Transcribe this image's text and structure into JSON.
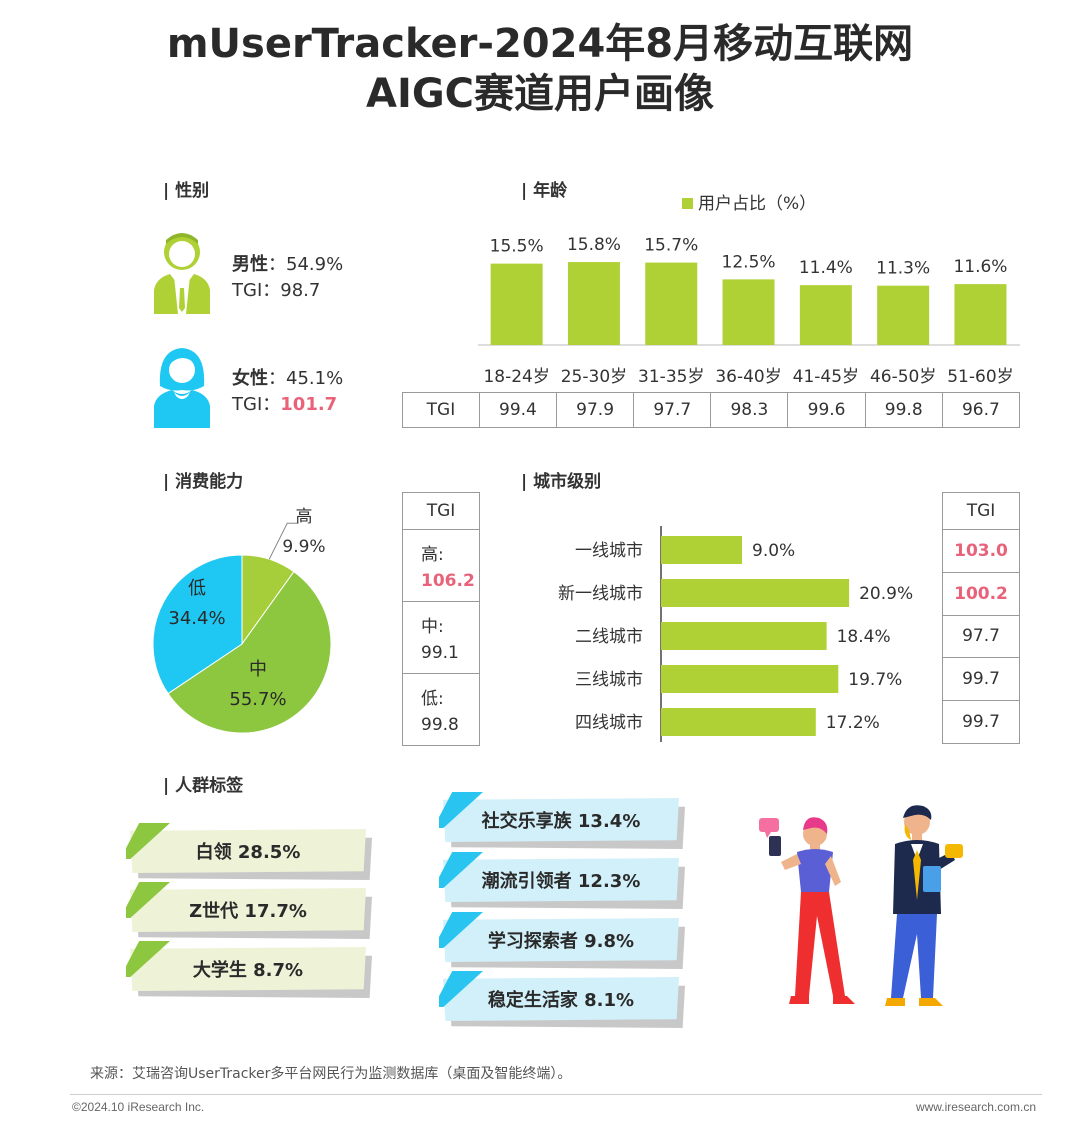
{
  "title": {
    "line1": "mUserTracker-2024年8月移动互联网",
    "line2": "AIGC赛道用户画像"
  },
  "colors": {
    "green": "#afd135",
    "pie_high": "#a6cd3a",
    "pie_mid": "#8dc63f",
    "pie_low": "#1ec8f2",
    "tgi_red": "#e8637a"
  },
  "sections": {
    "gender": "| 性别",
    "age": "| 年龄",
    "consumption": "| 消费能力",
    "city": "| 城市级别",
    "tags": "| 人群标签"
  },
  "gender": {
    "male": {
      "label": "男性",
      "value": "54.9%",
      "tgi_label": "TGI",
      "tgi": "98.7",
      "icon": "male-user-icon"
    },
    "female": {
      "label": "女性",
      "value": "45.1%",
      "tgi_label": "TGI",
      "tgi": "101.7",
      "icon": "female-user-icon"
    },
    "separator": "："
  },
  "consumption_table": {
    "header": "TGI",
    "rows": [
      {
        "label": "高:",
        "tgi": "106.2",
        "highlight": true
      },
      {
        "label": "中:",
        "tgi": "99.1",
        "highlight": false
      },
      {
        "label": "低:",
        "tgi": "99.8",
        "highlight": false
      }
    ]
  },
  "city_table": {
    "header": "TGI",
    "rows": [
      {
        "tgi": "103.0",
        "highlight": true
      },
      {
        "tgi": "100.2",
        "highlight": true
      },
      {
        "tgi": "97.7",
        "highlight": false
      },
      {
        "tgi": "99.7",
        "highlight": false
      },
      {
        "tgi": "99.7",
        "highlight": false
      }
    ]
  },
  "chart_data": [
    {
      "type": "bar",
      "legend": "用户占比（%）",
      "legend_position": "top-right",
      "categories": [
        "18-24岁",
        "25-30岁",
        "31-35岁",
        "36-40岁",
        "41-45岁",
        "46-50岁",
        "51-60岁"
      ],
      "series": [
        {
          "name": "用户占比（%）",
          "values": [
            15.5,
            15.8,
            15.7,
            12.5,
            11.4,
            11.3,
            11.6
          ]
        }
      ],
      "value_labels": [
        "15.5%",
        "15.8%",
        "15.7%",
        "12.5%",
        "11.4%",
        "11.3%",
        "11.6%"
      ],
      "tgi_label": "TGI",
      "tgi": [
        "99.4",
        "97.9",
        "97.7",
        "98.3",
        "99.6",
        "99.8",
        "96.7"
      ],
      "grid": false
    },
    {
      "type": "pie",
      "slices": [
        {
          "label": "高",
          "value": 9.9,
          "text": "9.9%"
        },
        {
          "label": "中",
          "value": 55.7,
          "text": "55.7%"
        },
        {
          "label": "低",
          "value": 34.4,
          "text": "34.4%"
        }
      ]
    },
    {
      "type": "bar",
      "orientation": "horizontal",
      "categories": [
        "一线城市",
        "新一线城市",
        "二线城市",
        "三线城市",
        "四线城市"
      ],
      "values": [
        9.0,
        20.9,
        18.4,
        19.7,
        17.2
      ],
      "value_labels": [
        "9.0%",
        "20.9%",
        "18.4%",
        "19.7%",
        "17.2%"
      ],
      "grid": false
    }
  ],
  "tags": {
    "green": [
      {
        "text": "白领  28.5%"
      },
      {
        "text": "Z世代  17.7%"
      },
      {
        "text": "大学生  8.7%"
      }
    ],
    "blue": [
      {
        "text": "社交乐享族  13.4%"
      },
      {
        "text": "潮流引领者  12.3%"
      },
      {
        "text": "学习探索者  9.8%"
      },
      {
        "text": "稳定生活家  8.1%"
      }
    ]
  },
  "illustration": "people-with-phones-illustration",
  "footer": {
    "source": "来源：艾瑞咨询UserTracker多平台网民行为监测数据库（桌面及智能终端）。",
    "copyright": "©2024.10 iResearch Inc.",
    "website": "www.iresearch.com.cn"
  }
}
